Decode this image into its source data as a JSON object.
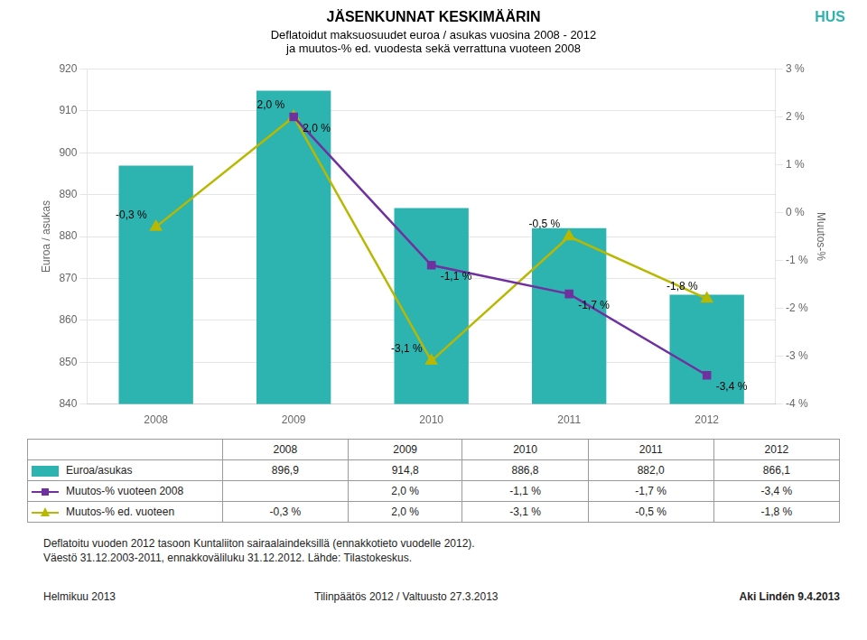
{
  "chart_data": {
    "type": "bar",
    "title": "JÄSENKUNNAT KESKIMÄÄRIN",
    "subtitle": [
      "Deflatoidut maksuosuudet euroa / asukas vuosina 2008 - 2012",
      "ja muutos-% ed. vuodesta sekä verrattuna vuoteen 2008"
    ],
    "categories": [
      "2008",
      "2009",
      "2010",
      "2011",
      "2012"
    ],
    "series": [
      {
        "name": "Euroa/asukas",
        "type": "bar",
        "color": "#2db3b0",
        "values": [
          896.9,
          914.8,
          886.8,
          882.0,
          866.1
        ],
        "value_labels": [
          "896,9",
          "914,8",
          "886,8",
          "882,0",
          "866,1"
        ]
      },
      {
        "name": "Muutos-% vuoteen 2008",
        "type": "line",
        "color": "#7030a0",
        "marker": "square",
        "axis": "y2",
        "values": [
          null,
          2.0,
          -1.1,
          -1.7,
          -3.4
        ],
        "value_labels": [
          null,
          "2,0 %",
          "-1,1 %",
          "-1,7 %",
          "-3,4 %"
        ]
      },
      {
        "name": "Muutos-% ed. vuoteen",
        "type": "line",
        "color": "#b8b800",
        "marker": "triangle",
        "axis": "y2",
        "values": [
          -0.3,
          2.0,
          -3.1,
          -0.5,
          -1.8
        ],
        "value_labels": [
          "-0,3 %",
          "2,0 %",
          "-3,1 %",
          "-0,5 %",
          "-1,8 %"
        ]
      }
    ],
    "ylabel": "Euroa / asukas",
    "y2label": "Muutos-%",
    "ylim": [
      840,
      920
    ],
    "yticks": [
      840,
      850,
      860,
      870,
      880,
      890,
      900,
      910,
      920
    ],
    "y2lim": [
      -4,
      3
    ],
    "y2ticks": [
      {
        "value": -4,
        "label": "-4 %"
      },
      {
        "value": -3,
        "label": "-3 %"
      },
      {
        "value": -2,
        "label": "-2 %"
      },
      {
        "value": -1,
        "label": "-1 %"
      },
      {
        "value": 0,
        "label": "0 %"
      },
      {
        "value": 1,
        "label": "1 %"
      },
      {
        "value": 2,
        "label": "2 %"
      },
      {
        "value": 3,
        "label": "3 %"
      }
    ],
    "grid": true,
    "data_labels": true,
    "annotations": [
      "Deflatoitu vuoden 2012 tasoon Kuntaliiton sairaalaindeksillä (ennakkotieto vuodelle 2012).",
      "Väestö 31.12.2003-2011, ennakkoväliluku 31.12.2012. Lähde: Tilastokeskus.",
      "Helmikuu 2013",
      "Tilinpäätös 2012 / Valtuusto 27.3.2013",
      "Aki Lindén 9.4.2013",
      "HUS"
    ]
  }
}
